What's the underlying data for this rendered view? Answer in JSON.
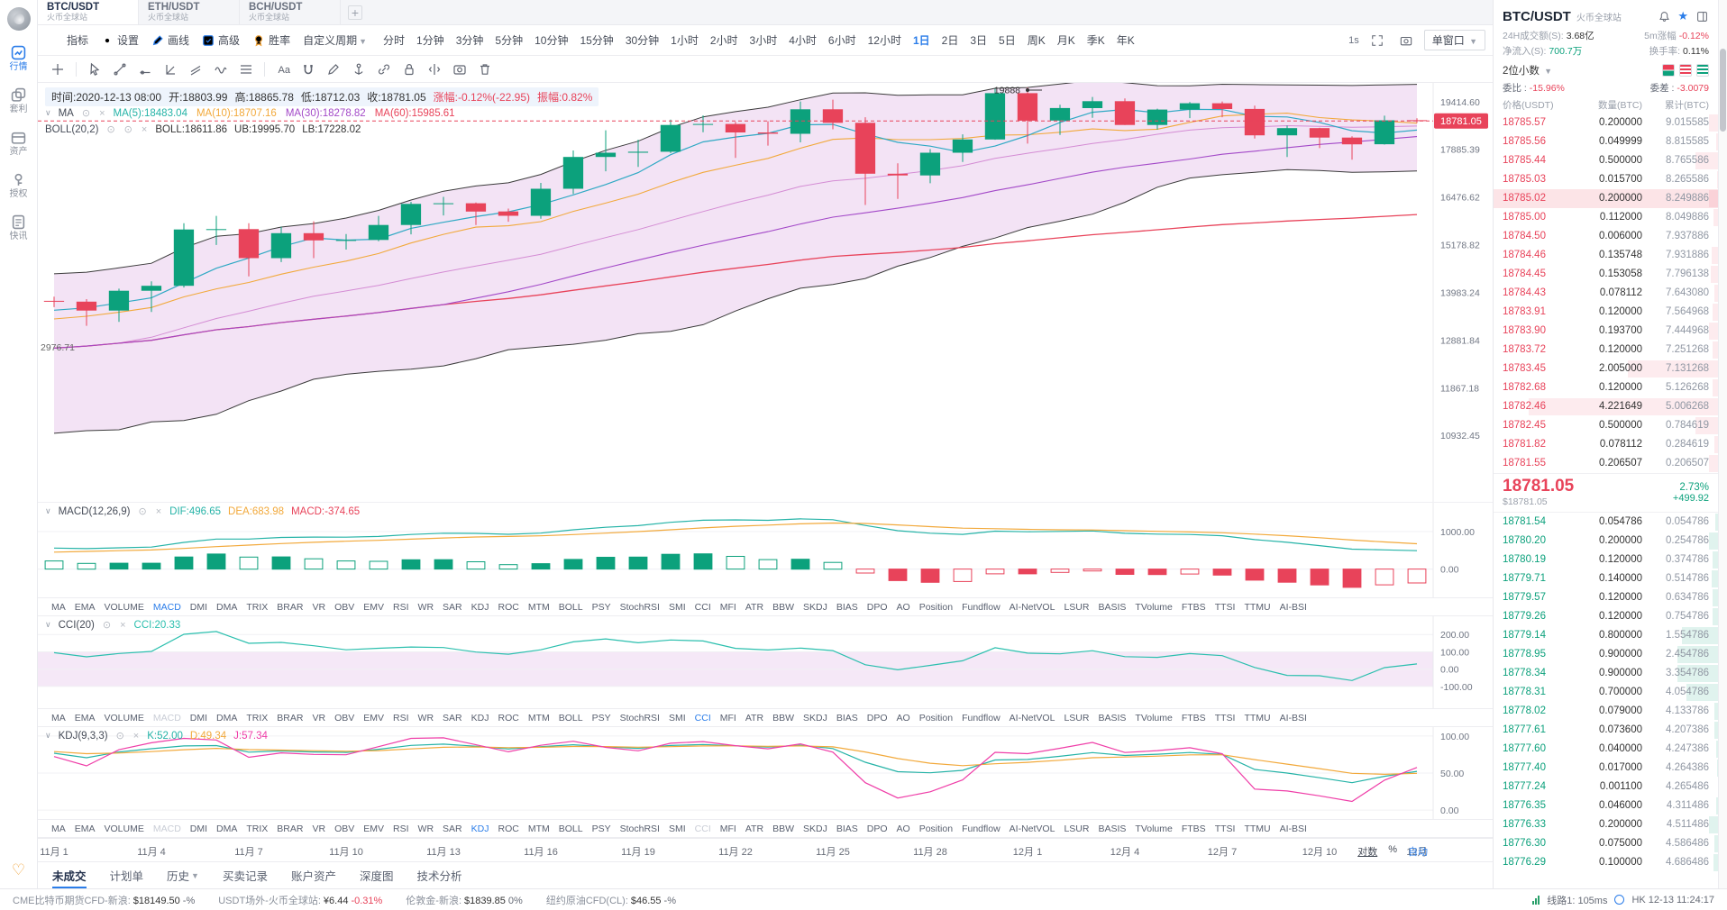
{
  "palette": {
    "up": "#0ca17c",
    "down": "#e8435a",
    "accent": "#2b7de9",
    "ma5": "#2fa9c4",
    "ma10": "#f2a93b",
    "ma30": "#a349c8",
    "ma60": "#e8435a",
    "boll_line": "#3a3a3a",
    "boll_mid": "#d48cd4",
    "band_fill": "rgba(217,168,223,0.32)",
    "dif": "#25b3a7",
    "dea": "#f2a93b",
    "cci": "#2bbfae",
    "k": "#25b3a7",
    "d": "#f2a93b",
    "j": "#ef3ea8"
  },
  "sidebar": {
    "items": [
      {
        "name": "market",
        "label": "行情",
        "active": true
      },
      {
        "name": "arbitrage",
        "label": "套利",
        "active": false
      },
      {
        "name": "assets",
        "label": "资产",
        "active": false
      },
      {
        "name": "authorize",
        "label": "授权",
        "active": false
      },
      {
        "name": "news",
        "label": "快讯",
        "active": false
      }
    ]
  },
  "symbol_tabs": [
    {
      "symbol": "BTC/USDT",
      "exchange": "火币全球站",
      "active": true
    },
    {
      "symbol": "ETH/USDT",
      "exchange": "火币全球站",
      "active": false
    },
    {
      "symbol": "BCH/USDT",
      "exchange": "火币全球站",
      "active": false
    }
  ],
  "toolbar": {
    "buttons": [
      {
        "name": "indicators",
        "label": "指标"
      },
      {
        "name": "settings",
        "label": "设置"
      },
      {
        "name": "draw",
        "label": "画线"
      },
      {
        "name": "advanced",
        "label": "高级"
      },
      {
        "name": "winrate",
        "label": "胜率"
      }
    ],
    "custom_period": "自定义周期",
    "periods": [
      "分时",
      "1分钟",
      "3分钟",
      "5分钟",
      "10分钟",
      "15分钟",
      "30分钟",
      "1小时",
      "2小时",
      "3小时",
      "4小时",
      "6小时",
      "12小时",
      "1日",
      "2日",
      "3日",
      "5日",
      "周K",
      "月K",
      "季K",
      "年K"
    ],
    "active_period": "1日",
    "speed": "1s",
    "window_mode": "单窗口"
  },
  "draw_tools": [
    "crosshair",
    "pointer",
    "trend-line",
    "ray",
    "angle",
    "parallel-lines",
    "wave",
    "fib-lines",
    "text",
    "magnet",
    "pen",
    "anchor",
    "link",
    "lock",
    "mirror",
    "snapshot",
    "trash"
  ],
  "chart": {
    "info": {
      "time": "时间:2020-12-13 08:00",
      "open": "开:18803.99",
      "high": "高:18865.78",
      "low": "低:18712.03",
      "close": "收:18781.05",
      "change": "涨幅:-0.12%(-22.95)",
      "amplitude": "振幅:0.82%"
    },
    "ma": {
      "title": "MA",
      "items": [
        {
          "key": "ma5",
          "label": "MA(5):18483.04"
        },
        {
          "key": "ma10",
          "label": "MA(10):18707.16"
        },
        {
          "key": "ma30",
          "label": "MA(30):18278.82"
        },
        {
          "key": "ma60",
          "label": "MA(60):15985.61"
        }
      ]
    },
    "boll": {
      "title": "BOLL(20,2)",
      "mid": "BOLL:18611.86",
      "ub": "UB:19995.70",
      "lb": "LB:17228.02"
    },
    "axis_prices": [
      "19414.60",
      "17885.39",
      "16476.62",
      "15178.82",
      "13983.24",
      "12881.84",
      "11867.18",
      "10932.45"
    ],
    "last_price": "18781.05",
    "annotations": {
      "high_label": "19888",
      "left_label": "2976.71"
    }
  },
  "chart_data": {
    "type": "candlestick",
    "symbol": "BTC/USDT",
    "interval": "1日",
    "log_scale": true,
    "price_range": [
      9750,
      20050
    ],
    "warmup": 17,
    "candles": [
      [
        11420,
        11630,
        11280,
        11500
      ],
      [
        11500,
        11540,
        11220,
        11320
      ],
      [
        11320,
        11410,
        11280,
        11360
      ],
      [
        11360,
        11500,
        11350,
        11480
      ],
      [
        11480,
        11810,
        11430,
        11740
      ],
      [
        11740,
        12040,
        11700,
        11910
      ],
      [
        11910,
        13240,
        11900,
        12780
      ],
      [
        12780,
        13200,
        12690,
        12990
      ],
      [
        12990,
        13030,
        12740,
        12930
      ],
      [
        12930,
        13160,
        12880,
        13100
      ],
      [
        13100,
        13350,
        12900,
        13030
      ],
      [
        13030,
        13240,
        12770,
        13070
      ],
      [
        13070,
        13790,
        13010,
        13650
      ],
      [
        13650,
        13860,
        13120,
        13270
      ],
      [
        13270,
        13650,
        12920,
        13440
      ],
      [
        13440,
        13670,
        13130,
        13540
      ],
      [
        13540,
        14100,
        13430,
        13780
      ],
      [
        13780,
        13880,
        13630,
        13760
      ],
      [
        13760,
        13820,
        13200,
        13550
      ],
      [
        13550,
        14070,
        13290,
        14020
      ],
      [
        14020,
        14250,
        13520,
        14140
      ],
      [
        14140,
        15750,
        14100,
        15580
      ],
      [
        15580,
        15950,
        15170,
        15590
      ],
      [
        15590,
        15750,
        14370,
        14830
      ],
      [
        14830,
        15650,
        14730,
        15480
      ],
      [
        15480,
        15800,
        14830,
        15290
      ],
      [
        15290,
        15460,
        15050,
        15300
      ],
      [
        15300,
        15950,
        15270,
        15700
      ],
      [
        15700,
        16340,
        15450,
        16280
      ],
      [
        16280,
        16480,
        15960,
        16300
      ],
      [
        16300,
        16320,
        15700,
        16070
      ],
      [
        16070,
        16150,
        15790,
        15950
      ],
      [
        15950,
        16880,
        15870,
        16710
      ],
      [
        16710,
        17850,
        16560,
        17650
      ],
      [
        17650,
        18480,
        17220,
        17780
      ],
      [
        17780,
        18180,
        17350,
        17810
      ],
      [
        17810,
        18820,
        17770,
        18650
      ],
      [
        18650,
        18960,
        18420,
        18680
      ],
      [
        18680,
        18750,
        17620,
        18410
      ],
      [
        18410,
        18770,
        18000,
        18370
      ],
      [
        18370,
        19420,
        18100,
        19160
      ],
      [
        19160,
        19480,
        18510,
        18720
      ],
      [
        18720,
        18900,
        16250,
        17150
      ],
      [
        17150,
        17460,
        16420,
        17100
      ],
      [
        17100,
        17890,
        16870,
        17780
      ],
      [
        17780,
        18350,
        17500,
        18190
      ],
      [
        18190,
        19850,
        18180,
        19700
      ],
      [
        19700,
        19888,
        18060,
        18790
      ],
      [
        18790,
        19310,
        18330,
        19200
      ],
      [
        19200,
        19570,
        18880,
        19430
      ],
      [
        19430,
        19520,
        18650,
        18650
      ],
      [
        18650,
        19180,
        18500,
        19150
      ],
      [
        19150,
        19400,
        18870,
        19360
      ],
      [
        19360,
        19420,
        18900,
        19170
      ],
      [
        19170,
        19280,
        18220,
        18320
      ],
      [
        18320,
        18630,
        17650,
        18550
      ],
      [
        18550,
        18560,
        17920,
        18250
      ],
      [
        18250,
        18290,
        17570,
        18040
      ],
      [
        18040,
        18950,
        18030,
        18800
      ],
      [
        18803.99,
        18865.78,
        18712.03,
        18781.05
      ]
    ]
  },
  "macd": {
    "title": "MACD(12,26,9)",
    "dif": "DIF:496.65",
    "dea": "DEA:683.98",
    "macd": "MACD:-374.65",
    "axis": [
      "1000.00",
      "0.00"
    ],
    "axis_values": [
      1000,
      0
    ]
  },
  "cci": {
    "title": "CCI(20)",
    "value": "CCI:20.33",
    "axis": [
      "200.00",
      "100.00",
      "0.00",
      "-100.00"
    ],
    "axis_values": [
      200,
      100,
      0,
      -100
    ]
  },
  "kdj": {
    "title": "KDJ(9,3,3)",
    "k": "K:52.00",
    "d": "D:49.34",
    "j": "J:57.34",
    "axis": [
      "100.00",
      "50.00",
      "0.00"
    ],
    "axis_values": [
      100,
      50,
      0
    ]
  },
  "indicator_tabs": {
    "items": [
      "MA",
      "EMA",
      "VOLUME",
      "MACD",
      "DMI",
      "DMA",
      "TRIX",
      "BRAR",
      "VR",
      "OBV",
      "EMV",
      "RSI",
      "WR",
      "SAR",
      "KDJ",
      "ROC",
      "MTM",
      "BOLL",
      "PSY",
      "StochRSI",
      "SMI",
      "CCI",
      "MFI",
      "ATR",
      "BBW",
      "SKDJ",
      "BIAS",
      "DPO",
      "AO",
      "Position",
      "Fundflow",
      "AI-NetVOL",
      "LSUR",
      "BASIS",
      "TVolume",
      "FTBS",
      "TTSI",
      "TTMU",
      "AI-BSI"
    ],
    "rows": [
      {
        "active": "MACD",
        "dimmed": []
      },
      {
        "active": "CCI",
        "dimmed": [
          "MACD"
        ]
      },
      {
        "active": "KDJ",
        "dimmed": [
          "MACD",
          "CCI"
        ]
      }
    ]
  },
  "xaxis": {
    "ticks": [
      {
        "i": 0,
        "label": "11月 1"
      },
      {
        "i": 3,
        "label": "11月 4"
      },
      {
        "i": 6,
        "label": "11月 7"
      },
      {
        "i": 9,
        "label": "11月 10"
      },
      {
        "i": 12,
        "label": "11月 13"
      },
      {
        "i": 15,
        "label": "11月 16"
      },
      {
        "i": 18,
        "label": "11月 19"
      },
      {
        "i": 21,
        "label": "11月 22"
      },
      {
        "i": 24,
        "label": "11月 25"
      },
      {
        "i": 27,
        "label": "11月 28"
      },
      {
        "i": 30,
        "label": "12月 1"
      },
      {
        "i": 33,
        "label": "12月 4"
      },
      {
        "i": 36,
        "label": "12月 7"
      },
      {
        "i": 39,
        "label": "12月 10"
      },
      {
        "i": 42,
        "label": "12月"
      }
    ],
    "options": {
      "log": "对数",
      "percent": "%",
      "auto": "自动"
    }
  },
  "bottom_tabs": [
    {
      "label": "未成交",
      "active": true,
      "caret": false
    },
    {
      "label": "计划单",
      "active": false,
      "caret": false
    },
    {
      "label": "历史",
      "active": false,
      "caret": true
    },
    {
      "label": "买卖记录",
      "active": false,
      "caret": false
    },
    {
      "label": "账户资产",
      "active": false,
      "caret": false
    },
    {
      "label": "深度图",
      "active": false,
      "caret": false
    },
    {
      "label": "技术分析",
      "active": false,
      "caret": false
    }
  ],
  "status_bar": {
    "quotes": [
      {
        "label": "CME比特币期货CFD-新浪:",
        "value": "$18149.50",
        "change": "-%",
        "dir": "flat"
      },
      {
        "label": "USDT场外-火币全球站:",
        "value": "¥6.44",
        "change": "-0.31%",
        "dir": "down"
      },
      {
        "label": "伦敦金-新浪:",
        "value": "$1839.85",
        "change": "0%",
        "dir": "flat"
      },
      {
        "label": "纽约原油CFD(CL):",
        "value": "$46.55",
        "change": "-%",
        "dir": "flat"
      }
    ],
    "line": "线路1: 105ms",
    "clock": "HK 12-13 11:24:17"
  },
  "orderbook": {
    "symbol": "BTC/USDT",
    "exchange": "火币全球站",
    "stats": {
      "turnover_label": "24H成交额(S):",
      "turnover": "3.68亿",
      "chg5m_label": "5m涨幅",
      "chg5m": "-0.12%",
      "inflow_label": "净流入(S):",
      "inflow": "700.7万",
      "turnover_rate_label": "换手率:",
      "turnover_rate": "0.11%"
    },
    "decimals": "2位小数",
    "weibi_label": "委比 :",
    "weibi": "-15.96%",
    "weicha_label": "委差 :",
    "weicha": "-3.0079",
    "columns": [
      "价格(USDT)",
      "数量(BTC)",
      "累计(BTC)"
    ],
    "asks": [
      [
        "18785.57",
        "0.200000",
        "9.015585"
      ],
      [
        "18785.56",
        "0.049999",
        "8.815585"
      ],
      [
        "18785.44",
        "0.500000",
        "8.765586"
      ],
      [
        "18785.03",
        "0.015700",
        "8.265586"
      ],
      [
        "18785.02",
        "0.200000",
        "8.249886"
      ],
      [
        "18785.00",
        "0.112000",
        "8.049886"
      ],
      [
        "18784.50",
        "0.006000",
        "7.937886"
      ],
      [
        "18784.46",
        "0.135748",
        "7.931886"
      ],
      [
        "18784.45",
        "0.153058",
        "7.796138"
      ],
      [
        "18784.43",
        "0.078112",
        "7.643080"
      ],
      [
        "18783.91",
        "0.120000",
        "7.564968"
      ],
      [
        "18783.90",
        "0.193700",
        "7.444968"
      ],
      [
        "18783.72",
        "0.120000",
        "7.251268"
      ],
      [
        "18783.45",
        "2.005000",
        "7.131268"
      ],
      [
        "18782.68",
        "0.120000",
        "5.126268"
      ],
      [
        "18782.46",
        "4.221649",
        "5.006268"
      ],
      [
        "18782.45",
        "0.500000",
        "0.784619"
      ],
      [
        "18781.82",
        "0.078112",
        "0.284619"
      ],
      [
        "18781.55",
        "0.206507",
        "0.206507"
      ]
    ],
    "flash": [
      "18785.02"
    ],
    "mid": {
      "price": "18781.05",
      "pct": "2.73%",
      "usd": "$18781.05",
      "change": "+499.92"
    },
    "bids": [
      [
        "18781.54",
        "0.054786",
        "0.054786"
      ],
      [
        "18780.20",
        "0.200000",
        "0.254786"
      ],
      [
        "18780.19",
        "0.120000",
        "0.374786"
      ],
      [
        "18779.71",
        "0.140000",
        "0.514786"
      ],
      [
        "18779.57",
        "0.120000",
        "0.634786"
      ],
      [
        "18779.26",
        "0.120000",
        "0.754786"
      ],
      [
        "18779.14",
        "0.800000",
        "1.554786"
      ],
      [
        "18778.95",
        "0.900000",
        "2.454786"
      ],
      [
        "18778.34",
        "0.900000",
        "3.354786"
      ],
      [
        "18778.31",
        "0.700000",
        "4.054786"
      ],
      [
        "18778.02",
        "0.079000",
        "4.133786"
      ],
      [
        "18777.61",
        "0.073600",
        "4.207386"
      ],
      [
        "18777.60",
        "0.040000",
        "4.247386"
      ],
      [
        "18777.40",
        "0.017000",
        "4.264386"
      ],
      [
        "18777.24",
        "0.001100",
        "4.265486"
      ],
      [
        "18776.35",
        "0.046000",
        "4.311486"
      ],
      [
        "18776.33",
        "0.200000",
        "4.511486"
      ],
      [
        "18776.30",
        "0.075000",
        "4.586486"
      ],
      [
        "18776.29",
        "0.100000",
        "4.686486"
      ]
    ]
  }
}
